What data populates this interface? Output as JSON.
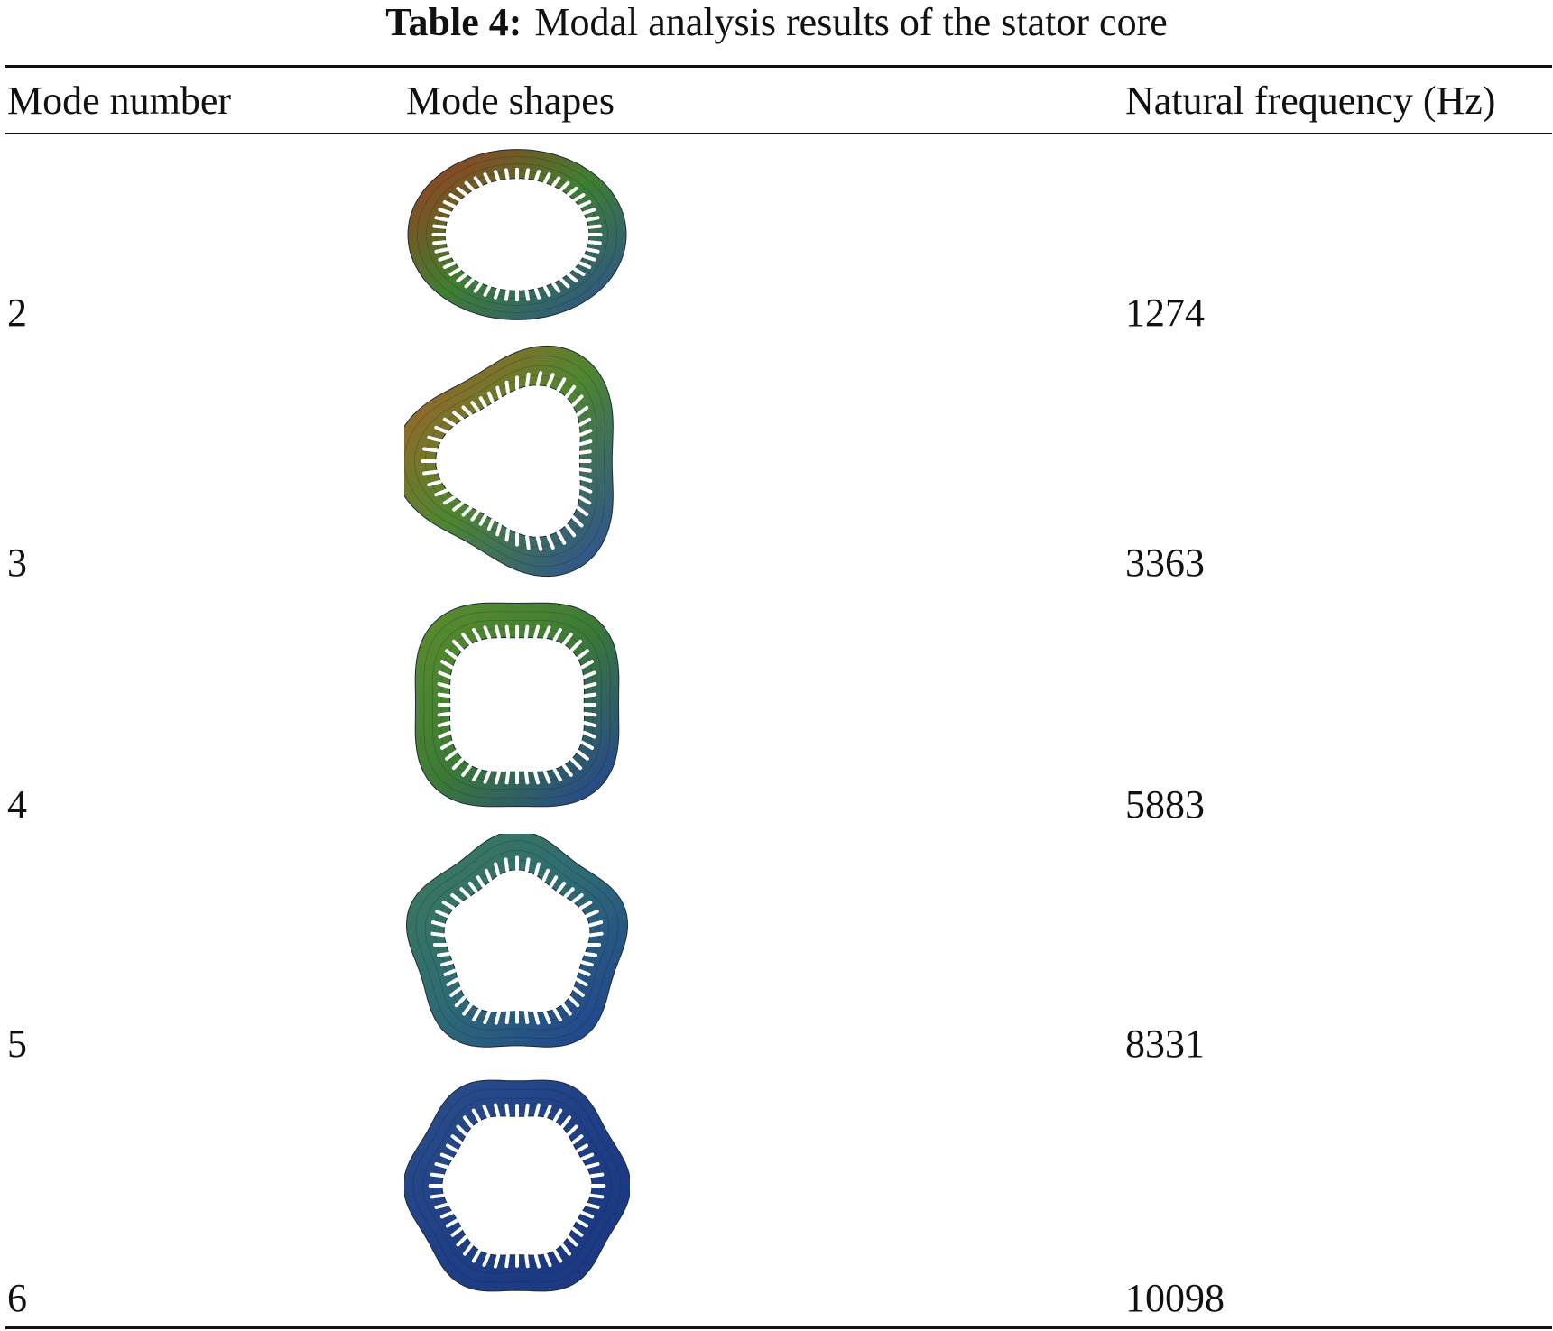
{
  "caption": {
    "label": "Table 4:",
    "text": "Modal analysis results of the stator core"
  },
  "headers": {
    "mode_number": "Mode number",
    "mode_shapes": "Mode shapes",
    "natural_frequency": "Natural frequency (Hz)"
  },
  "rows": [
    {
      "mode": "2",
      "frequency": "1274",
      "shape_icon": "stator-ellipse-mode-icon",
      "colors": [
        "#a5341c",
        "#3f7f30",
        "#2a4d9a"
      ]
    },
    {
      "mode": "3",
      "frequency": "3363",
      "shape_icon": "stator-triangle-mode-icon",
      "colors": [
        "#b55a25",
        "#4e8630",
        "#2a4d9a"
      ]
    },
    {
      "mode": "4",
      "frequency": "5883",
      "shape_icon": "stator-square-mode-icon",
      "colors": [
        "#5e8e2b",
        "#3b7a36",
        "#22409a"
      ]
    },
    {
      "mode": "5",
      "frequency": "8331",
      "shape_icon": "stator-pentagon-mode-icon",
      "colors": [
        "#3e7d55",
        "#2e6a74",
        "#1e3d96"
      ]
    },
    {
      "mode": "6",
      "frequency": "10098",
      "shape_icon": "stator-hexagon-mode-icon",
      "colors": [
        "#2b4f8a",
        "#1f3f86",
        "#1a3680"
      ]
    }
  ]
}
